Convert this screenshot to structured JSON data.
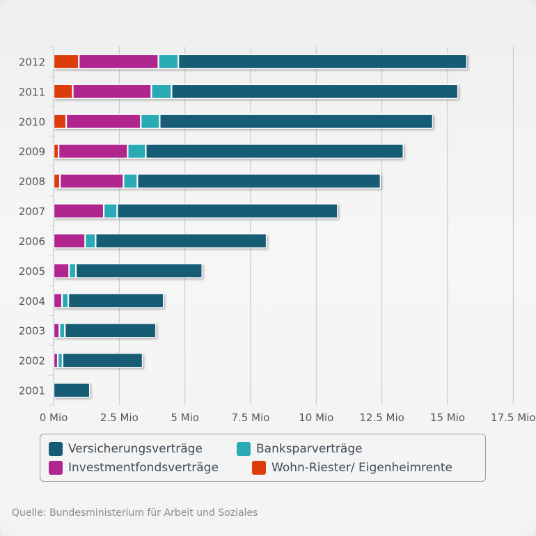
{
  "chart_data": {
    "type": "bar",
    "orientation": "horizontal",
    "stacked": true,
    "title": "",
    "xlabel": "",
    "ylabel": "",
    "categories": [
      "2012",
      "2011",
      "2010",
      "2009",
      "2008",
      "2007",
      "2006",
      "2005",
      "2004",
      "2003",
      "2002",
      "2001"
    ],
    "x_ticks": [
      "0 Mio",
      "2.5 Mio",
      "5 Mio",
      "7.5 Mio",
      "10 Mio",
      "12.5 Mio",
      "15 Mio",
      "17.5 Mio"
    ],
    "x_tick_values": [
      0,
      2.5,
      5,
      7.5,
      10,
      12.5,
      15,
      17.5
    ],
    "xlim": [
      0,
      18.5
    ],
    "unit": "Mio",
    "grid": true,
    "legend_position": "bottom",
    "stack_order": [
      "Wohn-Riester/ Eigenheimrente",
      "Investmentfondsverträge",
      "Banksparverträge",
      "Versicherungsverträge"
    ],
    "series": [
      {
        "name": "Versicherungsverträge",
        "color": "#155c75",
        "values": [
          10.99,
          10.91,
          10.4,
          9.81,
          9.26,
          8.4,
          6.51,
          4.81,
          3.63,
          3.47,
          3.05,
          1.38
        ]
      },
      {
        "name": "Banksparverträge",
        "color": "#2aaab5",
        "values": [
          0.76,
          0.77,
          0.72,
          0.69,
          0.53,
          0.51,
          0.4,
          0.26,
          0.24,
          0.21,
          0.18,
          0
        ]
      },
      {
        "name": "Investmentfondsverträge",
        "color": "#b0258e",
        "values": [
          3.03,
          2.99,
          2.84,
          2.63,
          2.42,
          1.91,
          1.2,
          0.59,
          0.32,
          0.22,
          0.16,
          0
        ]
      },
      {
        "name": "Wohn-Riester/ Eigenheimrente",
        "color": "#db3e0a",
        "values": [
          0.96,
          0.73,
          0.48,
          0.19,
          0.24,
          0,
          0,
          0,
          0,
          0,
          0,
          0
        ]
      }
    ]
  },
  "legend": {
    "items": [
      {
        "label": "Versicherungsverträge",
        "color": "#155c75"
      },
      {
        "label": "Banksparverträge",
        "color": "#2aaab5"
      },
      {
        "label": "Investmentfondsverträge",
        "color": "#b0258e"
      },
      {
        "label": "Wohn-Riester/ Eigenheimrente",
        "color": "#db3e0a"
      }
    ]
  },
  "footer": {
    "source": "Quelle: Bundesministerium für Arbeit und Soziales"
  }
}
